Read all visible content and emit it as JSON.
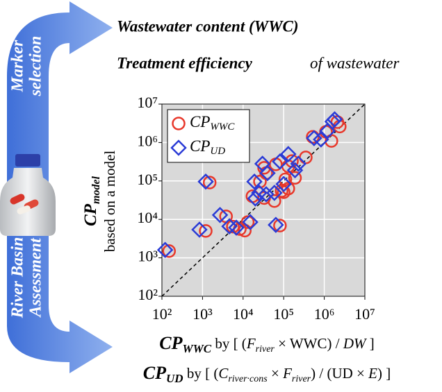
{
  "header": {
    "line_1": "Wastewater content (WWC)",
    "line_2_bold": "Treatment efficiency",
    "line_2_rest": "of wastewater"
  },
  "side_labels": {
    "top": [
      "Marker",
      "selection"
    ],
    "bottom": [
      "River Basin",
      "Assessment"
    ]
  },
  "chart_data": {
    "type": "scatter",
    "y_label": [
      "CP",
      "model",
      "based on a model"
    ],
    "x_label_lines": [
      [
        "CP",
        "WWC",
        " by [ (",
        "F",
        "river",
        " × WWC) / ",
        "DW",
        " ]"
      ],
      [
        "CP",
        "UD",
        " by [ (",
        "C",
        "river·cons",
        " × ",
        "F",
        "river",
        ") / (UD × ",
        "E",
        ") ]"
      ]
    ],
    "log_scale": true,
    "grid": true,
    "legend": "upper left",
    "xlim": [
      100,
      10000000
    ],
    "ylim": [
      100,
      10000000
    ],
    "xticks": [
      {
        "value": 100,
        "label": "10²"
      },
      {
        "value": 1000,
        "label": "10³"
      },
      {
        "value": 10000,
        "label": "10⁴"
      },
      {
        "value": 100000,
        "label": "10⁵"
      },
      {
        "value": 1000000,
        "label": "10⁶"
      },
      {
        "value": 10000000,
        "label": "10⁷"
      }
    ],
    "yticks": [
      {
        "value": 100,
        "label": "10²"
      },
      {
        "value": 1000,
        "label": "10³"
      },
      {
        "value": 10000,
        "label": "10⁴"
      },
      {
        "value": 100000,
        "label": "10⁵"
      },
      {
        "value": 1000000,
        "label": "10⁶"
      },
      {
        "value": 10000000,
        "label": "10⁷"
      }
    ],
    "series": [
      {
        "name": "CP",
        "name_subscript": "WWC",
        "color": "#e8372a",
        "marker": "circle",
        "x": [
          150,
          1200,
          1500,
          3800,
          5600,
          8300,
          11000,
          13000,
          17000,
          26000,
          33000,
          33000,
          37000,
          59000,
          64000,
          81000,
          89000,
          100000,
          110000,
          130000,
          130000,
          160000,
          190000,
          350000,
          520000,
          1100000,
          1500000,
          2100000,
          2400000
        ],
        "values": [
          1500,
          5000,
          91000,
          12000,
          6500,
          5600,
          5100,
          8500,
          40000,
          96000,
          36000,
          220000,
          160000,
          30000,
          270000,
          6900,
          55000,
          51000,
          110000,
          240000,
          63000,
          330000,
          120000,
          410000,
          1400000,
          1900000,
          1100000,
          3400000,
          2600000
        ]
      },
      {
        "name": "CP",
        "name_subscript": "UD",
        "color": "#2a3bd6",
        "marker": "diamond",
        "x": [
          120,
          840,
          1200,
          2700,
          4600,
          6800,
          15000,
          19000,
          20000,
          25000,
          30000,
          37000,
          40000,
          59000,
          64000,
          81000,
          100000,
          130000,
          190000,
          230000,
          560000,
          830000,
          1200000,
          1600000,
          1800000
        ],
        "values": [
          1600,
          5400,
          96000,
          13000,
          6600,
          6100,
          8500,
          96000,
          35000,
          49000,
          280000,
          45000,
          160000,
          49000,
          7200,
          320000,
          83000,
          500000,
          190000,
          280000,
          1300000,
          1200000,
          2000000,
          3500000,
          4000000
        ]
      }
    ]
  }
}
